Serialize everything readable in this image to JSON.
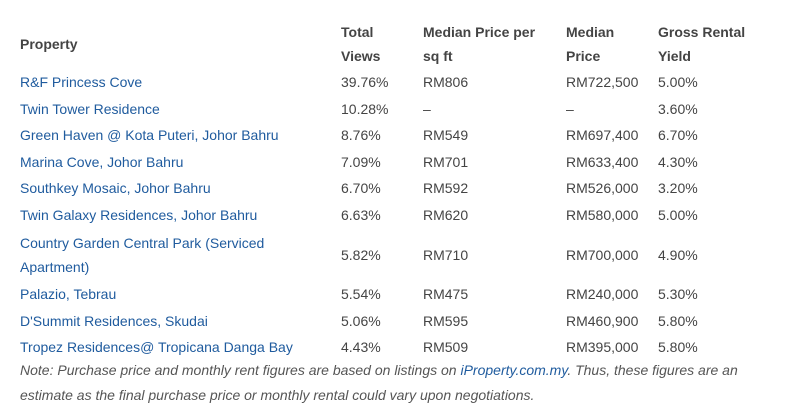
{
  "table": {
    "headers": [
      "Property",
      "Total Views",
      "Median Price per sq ft",
      "Median Price",
      "Gross Rental Yield"
    ],
    "rows": [
      [
        "R&F Princess Cove",
        "39.76%",
        "RM806",
        "RM722,500",
        "5.00%"
      ],
      [
        "Twin Tower Residence",
        "10.28%",
        "–",
        "–",
        "3.60%"
      ],
      [
        "Green Haven @ Kota Puteri, Johor Bahru",
        "8.76%",
        "RM549",
        "RM697,400",
        "6.70%"
      ],
      [
        "Marina Cove, Johor Bahru",
        "7.09%",
        "RM701",
        "RM633,400",
        "4.30%"
      ],
      [
        "Southkey Mosaic, Johor Bahru",
        "6.70%",
        "RM592",
        "RM526,000",
        "3.20%"
      ],
      [
        "Twin Galaxy Residences, Johor Bahru",
        "6.63%",
        "RM620",
        "RM580,000",
        "5.00%"
      ],
      [
        "Country Garden Central Park (Serviced Apartment)",
        "5.82%",
        "RM710",
        "RM700,000",
        "4.90%"
      ],
      [
        "Palazio, Tebrau",
        "5.54%",
        "RM475",
        "RM240,000",
        "5.30%"
      ],
      [
        "D'Summit Residences, Skudai",
        "5.06%",
        "RM595",
        "RM460,900",
        "5.80%"
      ],
      [
        "Tropez Residences@ Tropicana Danga Bay",
        "4.43%",
        "RM509",
        "RM395,000",
        "5.80%"
      ]
    ]
  },
  "note": {
    "before": "Note: Purchase price and monthly rent figures are based on listings on ",
    "link": "iProperty.com.my",
    "after": ". Thus, these figures are an estimate as the final purchase price or monthly rental could vary upon negotiations."
  },
  "colors": {
    "link": "#1f5b9e",
    "text": "#444444"
  }
}
